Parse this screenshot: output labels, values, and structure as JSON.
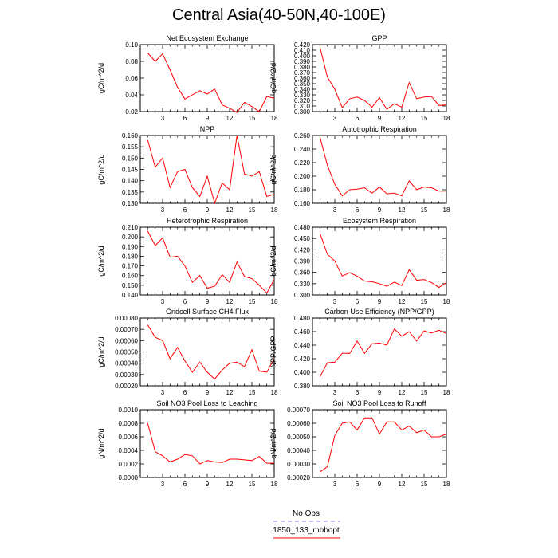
{
  "title": "Central Asia(40-50N,40-100E)",
  "legend": [
    {
      "name": "No Obs",
      "color": "#8080ff",
      "style": "dashed"
    },
    {
      "name": "1850_133_mbbopt",
      "color": "#ff0000",
      "style": "solid"
    }
  ],
  "chart_data": [
    {
      "type": "line",
      "title": "Net Ecosystem Exchange",
      "ylabel": "gC/m^2/d",
      "ylim": [
        0.02,
        0.1
      ],
      "yticks": [
        "0.02",
        "0.04",
        "0.06",
        "0.08",
        "0.10"
      ],
      "xlim": [
        0,
        18
      ],
      "xticks": [
        3,
        6,
        9,
        12,
        15,
        18
      ],
      "series": [
        {
          "x": [
            1,
            2,
            3,
            4,
            5,
            6,
            7,
            8,
            9,
            10,
            11,
            12,
            13,
            14,
            15,
            16,
            17,
            18
          ],
          "values": [
            0.09,
            0.08,
            0.089,
            0.07,
            0.049,
            0.035,
            0.04,
            0.045,
            0.041,
            0.047,
            0.028,
            0.024,
            0.019,
            0.031,
            0.026,
            0.02,
            0.038,
            0.036
          ]
        }
      ]
    },
    {
      "type": "line",
      "title": "GPP",
      "ylabel": "gC/m^2/d",
      "ylim": [
        0.3,
        0.42
      ],
      "yticks": [
        "0.300",
        "0.310",
        "0.320",
        "0.330",
        "0.340",
        "0.350",
        "0.360",
        "0.370",
        "0.380",
        "0.390",
        "0.400",
        "0.410",
        "0.420"
      ],
      "xlim": [
        0,
        18
      ],
      "xticks": [
        3,
        6,
        9,
        12,
        15,
        18
      ],
      "series": [
        {
          "x": [
            1,
            2,
            3,
            4,
            5,
            6,
            7,
            8,
            9,
            10,
            11,
            12,
            13,
            14,
            15,
            16,
            17,
            18
          ],
          "values": [
            0.416,
            0.362,
            0.34,
            0.307,
            0.323,
            0.326,
            0.32,
            0.308,
            0.325,
            0.304,
            0.314,
            0.308,
            0.352,
            0.323,
            0.326,
            0.327,
            0.311,
            0.312
          ]
        }
      ]
    },
    {
      "type": "line",
      "title": "NPP",
      "ylabel": "gC/m^2/d",
      "ylim": [
        0.13,
        0.16
      ],
      "yticks": [
        "0.130",
        "0.135",
        "0.140",
        "0.145",
        "0.150",
        "0.155",
        "0.160"
      ],
      "xlim": [
        0,
        18
      ],
      "xticks": [
        3,
        6,
        9,
        12,
        15,
        18
      ],
      "series": [
        {
          "x": [
            1,
            2,
            3,
            4,
            5,
            6,
            7,
            8,
            9,
            10,
            11,
            12,
            13,
            14,
            15,
            16,
            17,
            18
          ],
          "values": [
            0.158,
            0.146,
            0.15,
            0.137,
            0.144,
            0.145,
            0.137,
            0.133,
            0.142,
            0.13,
            0.139,
            0.136,
            0.16,
            0.143,
            0.142,
            0.144,
            0.133,
            0.134
          ]
        }
      ]
    },
    {
      "type": "line",
      "title": "Autotrophic Respiration",
      "ylabel": "gC/m^2/d",
      "ylim": [
        0.16,
        0.26
      ],
      "yticks": [
        "0.160",
        "0.180",
        "0.200",
        "0.220",
        "0.240",
        "0.260"
      ],
      "xlim": [
        0,
        18
      ],
      "xticks": [
        3,
        6,
        9,
        12,
        15,
        18
      ],
      "series": [
        {
          "x": [
            1,
            2,
            3,
            4,
            5,
            6,
            7,
            8,
            9,
            10,
            11,
            12,
            13,
            14,
            15,
            16,
            17,
            18
          ],
          "values": [
            0.258,
            0.216,
            0.188,
            0.171,
            0.18,
            0.181,
            0.183,
            0.175,
            0.184,
            0.174,
            0.175,
            0.171,
            0.193,
            0.18,
            0.184,
            0.183,
            0.178,
            0.178
          ]
        }
      ]
    },
    {
      "type": "line",
      "title": "Heterotrophic Respiration",
      "ylabel": "gC/m^2/d",
      "ylim": [
        0.14,
        0.21
      ],
      "yticks": [
        "0.140",
        "0.150",
        "0.160",
        "0.170",
        "0.180",
        "0.190",
        "0.200",
        "0.210"
      ],
      "xlim": [
        0,
        18
      ],
      "xticks": [
        3,
        6,
        9,
        12,
        15,
        18
      ],
      "series": [
        {
          "x": [
            1,
            2,
            3,
            4,
            5,
            6,
            7,
            8,
            9,
            10,
            11,
            12,
            13,
            14,
            15,
            16,
            17,
            18
          ],
          "values": [
            0.206,
            0.191,
            0.199,
            0.179,
            0.18,
            0.17,
            0.153,
            0.16,
            0.147,
            0.149,
            0.161,
            0.153,
            0.174,
            0.159,
            0.157,
            0.15,
            0.142,
            0.156
          ]
        }
      ]
    },
    {
      "type": "line",
      "title": "Ecosystem Respiration",
      "ylabel": "gC/m^2/d",
      "ylim": [
        0.3,
        0.48
      ],
      "yticks": [
        "0.300",
        "0.330",
        "0.360",
        "0.390",
        "0.420",
        "0.450",
        "0.480"
      ],
      "xlim": [
        0,
        18
      ],
      "xticks": [
        3,
        6,
        9,
        12,
        15,
        18
      ],
      "series": [
        {
          "x": [
            1,
            2,
            3,
            4,
            5,
            6,
            7,
            8,
            9,
            10,
            11,
            12,
            13,
            14,
            15,
            16,
            17,
            18
          ],
          "values": [
            0.464,
            0.408,
            0.39,
            0.35,
            0.359,
            0.35,
            0.337,
            0.335,
            0.33,
            0.323,
            0.334,
            0.325,
            0.367,
            0.339,
            0.341,
            0.333,
            0.32,
            0.333
          ]
        }
      ]
    },
    {
      "type": "line",
      "title": "Gridcell Surface CH4 Flux",
      "ylabel": "gC/m^2/d",
      "ylim": [
        0.0002,
        0.0008
      ],
      "yticks": [
        "0.00020",
        "0.00030",
        "0.00040",
        "0.00050",
        "0.00060",
        "0.00070",
        "0.00080"
      ],
      "xlim": [
        0,
        18
      ],
      "xticks": [
        3,
        6,
        9,
        12,
        15,
        18
      ],
      "series": [
        {
          "x": [
            1,
            2,
            3,
            4,
            5,
            6,
            7,
            8,
            9,
            10,
            11,
            12,
            13,
            14,
            15,
            16,
            17,
            18
          ],
          "values": [
            0.00074,
            0.00063,
            0.0006,
            0.00044,
            0.00054,
            0.00042,
            0.00032,
            0.00041,
            0.00032,
            0.00026,
            0.00034,
            0.0004,
            0.00041,
            0.00037,
            0.00052,
            0.00033,
            0.00032,
            0.00044
          ]
        }
      ]
    },
    {
      "type": "line",
      "title": "Carbon Use Efficiency (NPP/GPP)",
      "ylabel": "NPP/GPP",
      "ylim": [
        0.38,
        0.48
      ],
      "yticks": [
        "0.380",
        "0.400",
        "0.420",
        "0.440",
        "0.460",
        "0.480"
      ],
      "xlim": [
        0,
        18
      ],
      "xticks": [
        3,
        6,
        9,
        12,
        15,
        18
      ],
      "series": [
        {
          "x": [
            1,
            2,
            3,
            4,
            5,
            6,
            7,
            8,
            9,
            10,
            11,
            12,
            13,
            14,
            15,
            16,
            17,
            18
          ],
          "values": [
            0.393,
            0.414,
            0.415,
            0.428,
            0.428,
            0.446,
            0.428,
            0.442,
            0.443,
            0.44,
            0.464,
            0.453,
            0.46,
            0.446,
            0.461,
            0.458,
            0.462,
            0.457
          ]
        }
      ]
    },
    {
      "type": "line",
      "title": "Soil NO3 Pool Loss to Leaching",
      "ylabel": "gN/m^2/d",
      "ylim": [
        0.0,
        0.001
      ],
      "yticks": [
        "0.0000",
        "0.0002",
        "0.0004",
        "0.0006",
        "0.0008",
        "0.0010"
      ],
      "xlim": [
        0,
        18
      ],
      "xticks": [
        3,
        6,
        9,
        12,
        15,
        18
      ],
      "series": [
        {
          "x": [
            1,
            2,
            3,
            4,
            5,
            6,
            7,
            8,
            9,
            10,
            11,
            12,
            13,
            14,
            15,
            16,
            17,
            18
          ],
          "values": [
            0.0008,
            0.00038,
            0.00032,
            0.00023,
            0.00027,
            0.00034,
            0.00032,
            0.0002,
            0.00025,
            0.00023,
            0.00022,
            0.00027,
            0.00027,
            0.00026,
            0.00025,
            0.00031,
            0.00021,
            0.00021
          ]
        }
      ]
    },
    {
      "type": "line",
      "title": "Soil NO3 Pool Loss to Runoff",
      "ylabel": "gN/m^2/d",
      "ylim": [
        0.0002,
        0.0007
      ],
      "yticks": [
        "0.00020",
        "0.00030",
        "0.00040",
        "0.00050",
        "0.00060",
        "0.00070"
      ],
      "xlim": [
        0,
        18
      ],
      "xticks": [
        3,
        6,
        9,
        12,
        15,
        18
      ],
      "series": [
        {
          "x": [
            1,
            2,
            3,
            4,
            5,
            6,
            7,
            8,
            9,
            10,
            11,
            12,
            13,
            14,
            15,
            16,
            17,
            18
          ],
          "values": [
            0.00024,
            0.00028,
            0.00051,
            0.0006,
            0.00061,
            0.00055,
            0.00064,
            0.00064,
            0.00052,
            0.00061,
            0.00061,
            0.00055,
            0.00058,
            0.00053,
            0.00055,
            0.0005,
            0.0005,
            0.00052
          ]
        }
      ]
    }
  ]
}
